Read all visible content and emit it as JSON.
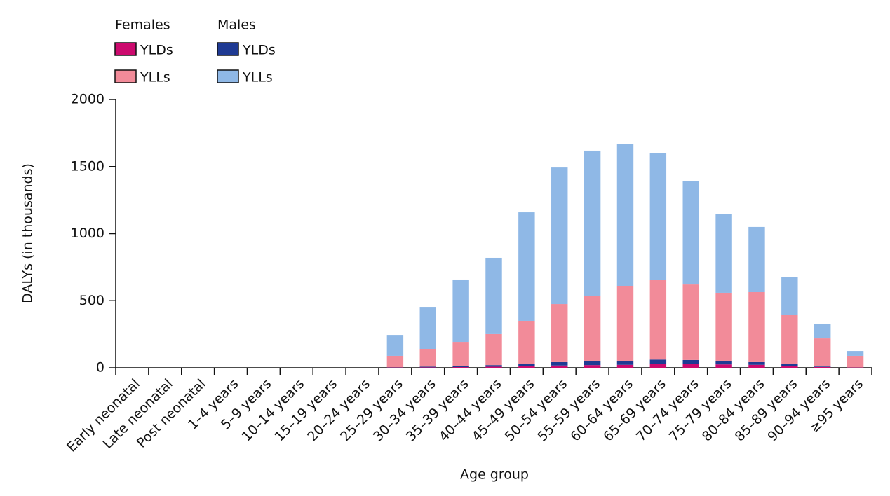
{
  "chart_data": {
    "type": "stacked_bar",
    "x_label": "Age group",
    "y_label": "DALYs (in thousands)",
    "categories": [
      "Early neonatal",
      "Late neonatal",
      "Post neonatal",
      "1–4 years",
      "5–9 years",
      "10–14 years",
      "15–19 years",
      "20–24 years",
      "25–29 years",
      "30–34 years",
      "35–39 years",
      "40–44 years",
      "45–49 years",
      "50–54 years",
      "55–59 years",
      "60–64 years",
      "65–69 years",
      "70–74 years",
      "75–79 years",
      "80–84 years",
      "85–89 years",
      "90–94 years",
      "≥95 years"
    ],
    "series": [
      {
        "name": "YLDs",
        "group": "Females",
        "color": "#cc0a6e",
        "values": [
          0,
          0,
          0,
          0,
          0,
          0,
          0,
          0,
          2,
          3,
          5,
          8,
          12,
          17,
          20,
          22,
          28,
          30,
          25,
          22,
          15,
          6,
          2
        ]
      },
      {
        "name": "YLDs",
        "group": "Males",
        "color": "#1f3a93",
        "values": [
          0,
          0,
          0,
          0,
          0,
          0,
          0,
          0,
          2,
          5,
          8,
          12,
          18,
          25,
          28,
          30,
          33,
          28,
          25,
          20,
          12,
          4,
          1
        ]
      },
      {
        "name": "YLLs",
        "group": "Females",
        "color": "#f28b99",
        "values": [
          0,
          0,
          0,
          0,
          0,
          0,
          0,
          0,
          85,
          133,
          180,
          231,
          320,
          433,
          485,
          559,
          592,
          563,
          509,
          522,
          365,
          209,
          86
        ]
      },
      {
        "name": "YLLs",
        "group": "Males",
        "color": "#8fb8e6",
        "values": [
          0,
          0,
          0,
          0,
          0,
          0,
          0,
          0,
          156,
          313,
          465,
          569,
          809,
          1018,
          1086,
          1055,
          945,
          768,
          585,
          486,
          282,
          110,
          36
        ]
      }
    ],
    "ylim": [
      0,
      2000
    ],
    "yticks": [
      0,
      500,
      1000,
      1500,
      2000
    ],
    "grid": false
  }
}
